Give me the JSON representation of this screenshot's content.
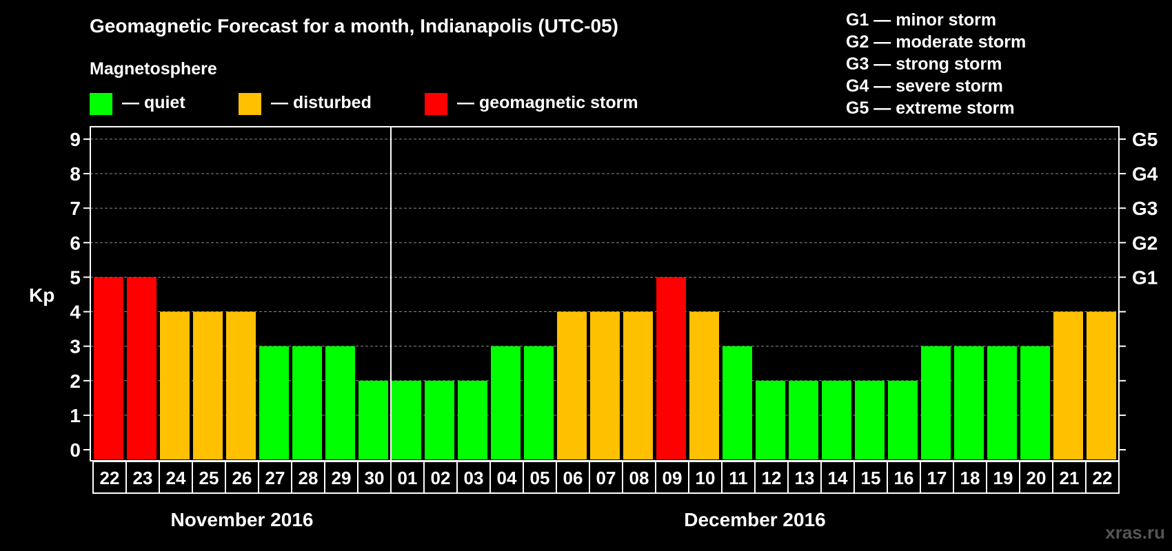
{
  "chart_data": {
    "type": "bar",
    "title": "Geomagnetic Forecast for a month, Indianapolis (UTC-05)",
    "ylabel": "Kp",
    "ylim": [
      0,
      9
    ],
    "yticks": [
      "0",
      "1",
      "2",
      "3",
      "4",
      "5",
      "6",
      "7",
      "8",
      "9"
    ],
    "right_axis": {
      "labels": [
        {
          "kp": 5,
          "label": "G1"
        },
        {
          "kp": 6,
          "label": "G2"
        },
        {
          "kp": 7,
          "label": "G3"
        },
        {
          "kp": 8,
          "label": "G4"
        },
        {
          "kp": 9,
          "label": "G5"
        }
      ]
    },
    "legend_heading": "Magnetosphere",
    "legend": [
      {
        "label": "— quiet",
        "color": "#00ff00"
      },
      {
        "label": "— disturbed",
        "color": "#ffc000"
      },
      {
        "label": "— geomagnetic storm",
        "color": "#ff0000"
      }
    ],
    "storm_scale": [
      "G1 — minor storm",
      "G2 — moderate storm",
      "G3 — strong storm",
      "G4 — severe storm",
      "G5 — extreme storm"
    ],
    "categories": [
      "22",
      "23",
      "24",
      "25",
      "26",
      "27",
      "28",
      "29",
      "30",
      "01",
      "02",
      "03",
      "04",
      "05",
      "06",
      "07",
      "08",
      "09",
      "10",
      "11",
      "12",
      "13",
      "14",
      "15",
      "16",
      "17",
      "18",
      "19",
      "20",
      "21",
      "22"
    ],
    "values": [
      5,
      5,
      4,
      4,
      4,
      3,
      3,
      3,
      2,
      2,
      2,
      2,
      3,
      3,
      4,
      4,
      4,
      5,
      4,
      3,
      2,
      2,
      2,
      2,
      2,
      3,
      3,
      3,
      3,
      4,
      4
    ],
    "months": [
      {
        "label": "November 2016",
        "start": 0,
        "end": 8
      },
      {
        "label": "December 2016",
        "start": 9,
        "end": 30
      }
    ],
    "colors": {
      "quiet": "#00ff00",
      "disturbed": "#ffc000",
      "storm": "#ff0000"
    },
    "grid": true
  },
  "watermark": "xras.ru"
}
